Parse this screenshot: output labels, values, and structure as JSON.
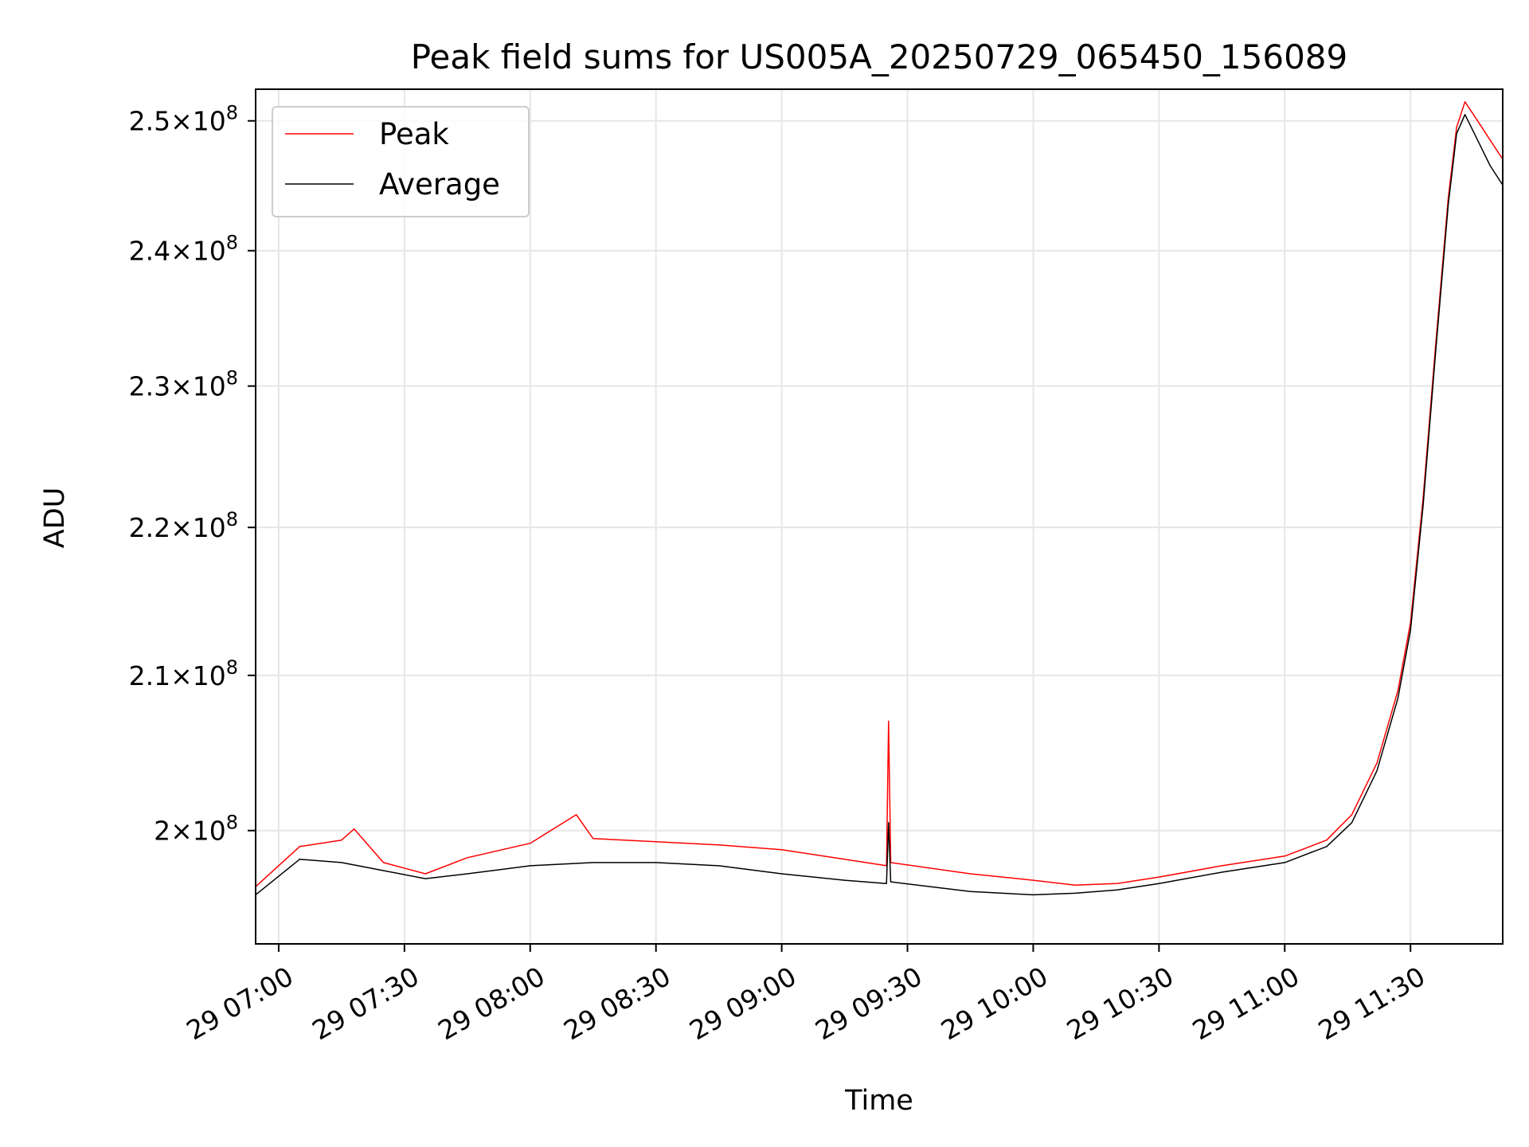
{
  "chart_data": {
    "type": "line",
    "title": "Peak field sums for US005A_20250729_065450_156089",
    "xlabel": "Time",
    "ylabel": "ADU",
    "y_scale": "log",
    "grid": true,
    "legend_position": "top-left",
    "xlim": [
      "2025-07-29 06:54:30",
      "2025-07-29 11:52:00"
    ],
    "ylim": [
      193000000,
      252500000
    ],
    "x_ticks": [
      {
        "t": "2025-07-29 07:00",
        "label": "29 07:00"
      },
      {
        "t": "2025-07-29 07:30",
        "label": "29 07:30"
      },
      {
        "t": "2025-07-29 08:00",
        "label": "29 08:00"
      },
      {
        "t": "2025-07-29 08:30",
        "label": "29 08:30"
      },
      {
        "t": "2025-07-29 09:00",
        "label": "29 09:00"
      },
      {
        "t": "2025-07-29 09:30",
        "label": "29 09:30"
      },
      {
        "t": "2025-07-29 10:00",
        "label": "29 10:00"
      },
      {
        "t": "2025-07-29 10:30",
        "label": "29 10:30"
      },
      {
        "t": "2025-07-29 11:00",
        "label": "29 11:00"
      },
      {
        "t": "2025-07-29 11:30",
        "label": "29 11:30"
      }
    ],
    "y_ticks": [
      {
        "value": 200000000,
        "mant": "2",
        "exp": "8"
      },
      {
        "value": 210000000,
        "mant": "2.1",
        "exp": "8"
      },
      {
        "value": 220000000,
        "mant": "2.2",
        "exp": "8"
      },
      {
        "value": 230000000,
        "mant": "2.3",
        "exp": "8"
      },
      {
        "value": 240000000,
        "mant": "2.4",
        "exp": "8"
      },
      {
        "value": 250000000,
        "mant": "2.5",
        "exp": "8"
      }
    ],
    "series": [
      {
        "name": "Peak",
        "color": "#ff0000",
        "points": [
          [
            "2025-07-29 06:54:30",
            196500000
          ],
          [
            "2025-07-29 07:05",
            199000000
          ],
          [
            "2025-07-29 07:15",
            199400000
          ],
          [
            "2025-07-29 07:18",
            200100000
          ],
          [
            "2025-07-29 07:25",
            198000000
          ],
          [
            "2025-07-29 07:35",
            197300000
          ],
          [
            "2025-07-29 07:45",
            198300000
          ],
          [
            "2025-07-29 08:00",
            199200000
          ],
          [
            "2025-07-29 08:11",
            201000000
          ],
          [
            "2025-07-29 08:15",
            199500000
          ],
          [
            "2025-07-29 08:30",
            199300000
          ],
          [
            "2025-07-29 08:45",
            199100000
          ],
          [
            "2025-07-29 09:00",
            198800000
          ],
          [
            "2025-07-29 09:15",
            198200000
          ],
          [
            "2025-07-29 09:25",
            197800000
          ],
          [
            "2025-07-29 09:25:30",
            207000000
          ],
          [
            "2025-07-29 09:26",
            198000000
          ],
          [
            "2025-07-29 09:45",
            197300000
          ],
          [
            "2025-07-29 10:00",
            196900000
          ],
          [
            "2025-07-29 10:10",
            196600000
          ],
          [
            "2025-07-29 10:20",
            196700000
          ],
          [
            "2025-07-29 10:30",
            197100000
          ],
          [
            "2025-07-29 10:45",
            197800000
          ],
          [
            "2025-07-29 11:00",
            198400000
          ],
          [
            "2025-07-29 11:10",
            199400000
          ],
          [
            "2025-07-29 11:16",
            201000000
          ],
          [
            "2025-07-29 11:22",
            204300000
          ],
          [
            "2025-07-29 11:27",
            209000000
          ],
          [
            "2025-07-29 11:30",
            213500000
          ],
          [
            "2025-07-29 11:33",
            222000000
          ],
          [
            "2025-07-29 11:36",
            233000000
          ],
          [
            "2025-07-29 11:39",
            244000000
          ],
          [
            "2025-07-29 11:41",
            249500000
          ],
          [
            "2025-07-29 11:43",
            251500000
          ],
          [
            "2025-07-29 11:46",
            250000000
          ],
          [
            "2025-07-29 11:49",
            248500000
          ],
          [
            "2025-07-29 11:52",
            247000000
          ]
        ]
      },
      {
        "name": "Average",
        "color": "#000000",
        "points": [
          [
            "2025-07-29 06:54:30",
            196000000
          ],
          [
            "2025-07-29 07:05",
            198200000
          ],
          [
            "2025-07-29 07:15",
            198000000
          ],
          [
            "2025-07-29 07:25",
            197500000
          ],
          [
            "2025-07-29 07:35",
            197000000
          ],
          [
            "2025-07-29 07:45",
            197300000
          ],
          [
            "2025-07-29 08:00",
            197800000
          ],
          [
            "2025-07-29 08:15",
            198000000
          ],
          [
            "2025-07-29 08:30",
            198000000
          ],
          [
            "2025-07-29 08:45",
            197800000
          ],
          [
            "2025-07-29 09:00",
            197300000
          ],
          [
            "2025-07-29 09:15",
            196900000
          ],
          [
            "2025-07-29 09:25",
            196700000
          ],
          [
            "2025-07-29 09:25:30",
            200500000
          ],
          [
            "2025-07-29 09:26",
            196800000
          ],
          [
            "2025-07-29 09:45",
            196200000
          ],
          [
            "2025-07-29 10:00",
            196000000
          ],
          [
            "2025-07-29 10:10",
            196100000
          ],
          [
            "2025-07-29 10:20",
            196300000
          ],
          [
            "2025-07-29 10:30",
            196700000
          ],
          [
            "2025-07-29 10:45",
            197400000
          ],
          [
            "2025-07-29 11:00",
            198000000
          ],
          [
            "2025-07-29 11:10",
            199000000
          ],
          [
            "2025-07-29 11:16",
            200500000
          ],
          [
            "2025-07-29 11:22",
            203800000
          ],
          [
            "2025-07-29 11:27",
            208500000
          ],
          [
            "2025-07-29 11:30",
            213000000
          ],
          [
            "2025-07-29 11:33",
            221500000
          ],
          [
            "2025-07-29 11:36",
            232500000
          ],
          [
            "2025-07-29 11:39",
            243500000
          ],
          [
            "2025-07-29 11:41",
            249000000
          ],
          [
            "2025-07-29 11:43",
            250500000
          ],
          [
            "2025-07-29 11:46",
            248500000
          ],
          [
            "2025-07-29 11:49",
            246500000
          ],
          [
            "2025-07-29 11:52",
            245000000
          ]
        ]
      }
    ]
  }
}
